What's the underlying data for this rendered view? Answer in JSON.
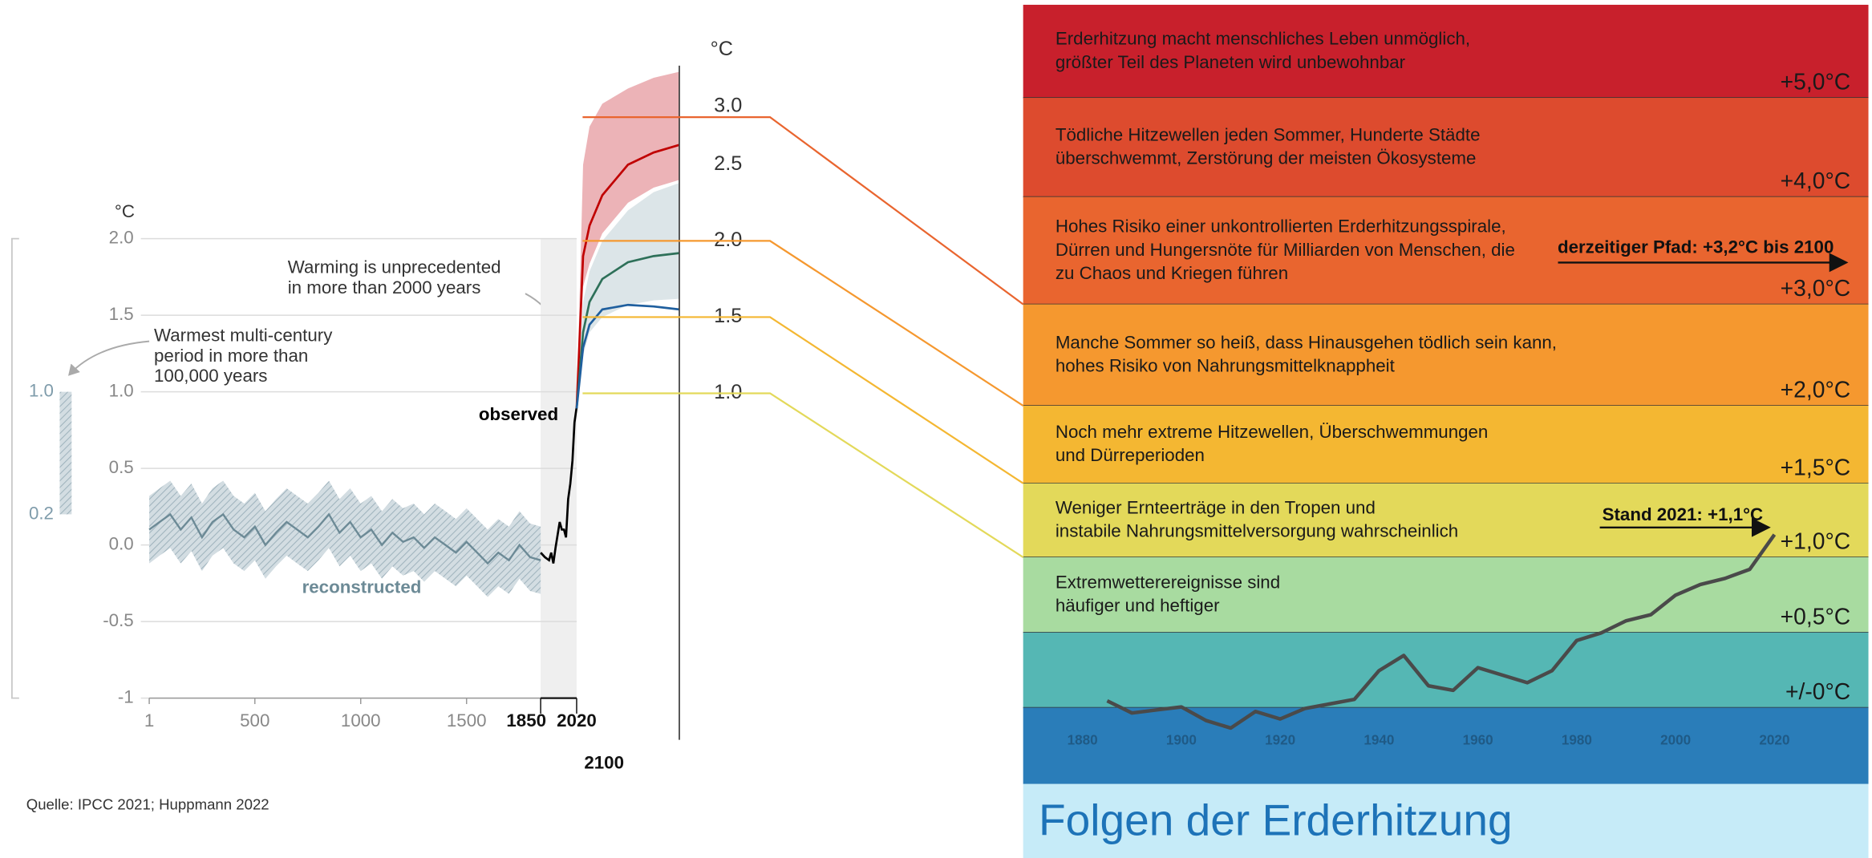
{
  "chart_data": [
    {
      "type": "line",
      "ylabel": "°C",
      "y2label": "°C",
      "xlim": [
        1,
        2100
      ],
      "xticks": [
        1,
        500,
        1000,
        1500,
        1850,
        2020,
        2100
      ],
      "ylim": [
        -1,
        2
      ],
      "yticks": [
        -1,
        -0.5,
        {
          "value": 0,
          "label": "0.0"
        },
        0.5,
        {
          "value": 1,
          "label": "1.0"
        },
        1.5,
        {
          "value": 2,
          "label": "2.0"
        }
      ],
      "y2lim": [
        -1,
        3.15
      ],
      "y2ticks": [
        {
          "value": 3,
          "label": "3.0"
        },
        2.5,
        {
          "value": 2,
          "label": "2.0"
        },
        1.5,
        {
          "value": 1,
          "label": "1.0"
        }
      ],
      "grid": true,
      "range_ticks": [
        {
          "value": 1,
          "label": "1.0"
        },
        {
          "value": 0.2,
          "label": "0.2"
        }
      ],
      "annotations": [
        [
          "Warming is unprecedented",
          "in more than 2000 years"
        ],
        [
          "Warmest multi-century",
          "period in more than",
          "100,000 years"
        ]
      ],
      "series": [
        {
          "name": "reconstructed",
          "color": "#6c8a96",
          "band_color": "#b9c9d1",
          "x": [
            1,
            50,
            100,
            150,
            200,
            250,
            300,
            350,
            400,
            450,
            500,
            550,
            600,
            650,
            700,
            750,
            800,
            850,
            900,
            950,
            1000,
            1050,
            1100,
            1150,
            1200,
            1250,
            1300,
            1350,
            1400,
            1450,
            1500,
            1550,
            1600,
            1650,
            1700,
            1750,
            1800,
            1850
          ],
          "values": [
            0.1,
            0.15,
            0.2,
            0.1,
            0.18,
            0.05,
            0.15,
            0.2,
            0.1,
            0.05,
            0.12,
            0.0,
            0.08,
            0.15,
            0.1,
            0.05,
            0.12,
            0.2,
            0.08,
            0.15,
            0.05,
            0.1,
            0.0,
            0.08,
            0.02,
            0.05,
            -0.02,
            0.05,
            0.0,
            -0.05,
            0.02,
            -0.05,
            -0.12,
            -0.05,
            -0.1,
            0.0,
            -0.08,
            -0.1
          ],
          "upper": [
            0.32,
            0.37,
            0.42,
            0.32,
            0.4,
            0.27,
            0.37,
            0.42,
            0.32,
            0.27,
            0.34,
            0.22,
            0.3,
            0.37,
            0.32,
            0.27,
            0.34,
            0.42,
            0.3,
            0.37,
            0.27,
            0.32,
            0.22,
            0.3,
            0.24,
            0.27,
            0.2,
            0.27,
            0.22,
            0.17,
            0.24,
            0.17,
            0.1,
            0.17,
            0.12,
            0.22,
            0.14,
            0.12
          ],
          "lower": [
            -0.12,
            -0.07,
            -0.02,
            -0.12,
            -0.04,
            -0.17,
            -0.07,
            -0.02,
            -0.12,
            -0.17,
            -0.1,
            -0.22,
            -0.14,
            -0.07,
            -0.12,
            -0.17,
            -0.1,
            -0.02,
            -0.14,
            -0.07,
            -0.17,
            -0.12,
            -0.22,
            -0.14,
            -0.2,
            -0.17,
            -0.24,
            -0.17,
            -0.22,
            -0.27,
            -0.2,
            -0.27,
            -0.34,
            -0.27,
            -0.32,
            -0.22,
            -0.3,
            -0.32
          ]
        },
        {
          "name": "observed",
          "color": "#000000",
          "x": [
            1850,
            1870,
            1890,
            1900,
            1910,
            1920,
            1940,
            1950,
            1960,
            1970,
            1980,
            1990,
            2000,
            2010,
            2020
          ],
          "values": [
            -0.05,
            -0.08,
            -0.1,
            -0.05,
            -0.12,
            -0.02,
            0.15,
            0.1,
            0.1,
            0.05,
            0.3,
            0.4,
            0.55,
            0.8,
            0.9
          ]
        },
        {
          "color": "#c00000",
          "band_color": "#e9a6aa",
          "axis": "y2",
          "x": [
            2020,
            2025,
            2030,
            2040,
            2060,
            2080,
            2100
          ],
          "values": [
            0.9,
            1.9,
            2.1,
            2.3,
            2.5,
            2.58,
            2.63
          ],
          "upper": [
            0.9,
            2.5,
            2.75,
            2.9,
            3.0,
            3.07,
            3.11
          ],
          "lower": [
            0.9,
            1.7,
            1.85,
            2.05,
            2.25,
            2.35,
            2.4
          ]
        },
        {
          "color": "#2e7059",
          "band_color": "#dce5e8",
          "axis": "y2",
          "x": [
            2020,
            2025,
            2030,
            2040,
            2060,
            2080,
            2100
          ],
          "values": [
            0.9,
            1.4,
            1.6,
            1.75,
            1.86,
            1.9,
            1.92
          ],
          "upper": [
            0.9,
            1.6,
            1.8,
            2.0,
            2.2,
            2.32,
            2.38
          ],
          "lower": [
            0.9,
            1.25,
            1.4,
            1.5,
            1.58,
            1.61,
            1.62
          ]
        },
        {
          "color": "#1f5f9e",
          "axis": "y2",
          "x": [
            2020,
            2025,
            2030,
            2040,
            2060,
            2080,
            2100
          ],
          "values": [
            0.9,
            1.3,
            1.45,
            1.55,
            1.58,
            1.57,
            1.55
          ]
        }
      ]
    },
    {
      "type": "line",
      "title": "Folgen der Erderhitzung",
      "xlim": [
        1868,
        2039
      ],
      "ylim": [
        -0.5,
        1.0
      ],
      "xticks": [
        1880,
        1900,
        1920,
        1940,
        1960,
        1980,
        2000,
        2020
      ],
      "color": "#4a4a4a",
      "axis_band_color": "#2a7db9",
      "tick_color": "#1f5a86",
      "title_band_color": "#c6ebf8",
      "title_color": "#1d73b8",
      "x": [
        1885,
        1890,
        1895,
        1900,
        1905,
        1910,
        1915,
        1920,
        1925,
        1930,
        1935,
        1940,
        1945,
        1950,
        1955,
        1960,
        1965,
        1970,
        1975,
        1980,
        1985,
        1990,
        1995,
        2000,
        2005,
        2010,
        2015,
        2020
      ],
      "values": [
        0.05,
        -0.03,
        -0.01,
        0.01,
        -0.08,
        -0.13,
        -0.02,
        -0.07,
        0.0,
        0.03,
        0.06,
        0.25,
        0.35,
        0.15,
        0.12,
        0.27,
        0.22,
        0.17,
        0.25,
        0.45,
        0.5,
        0.58,
        0.62,
        0.75,
        0.82,
        0.86,
        0.92,
        1.15
      ],
      "annotations": [
        "derzeitiger Pfad: +3,2°C bis 2100",
        "Stand 2021: +1,1°C"
      ],
      "bands": [
        {
          "color": "#c8202c",
          "label": "+5,0°C",
          "lines": [
            "Erderhitzung macht menschliches Leben unmöglich,",
            "größter Teil des Planeten wird unbewohnbar"
          ]
        },
        {
          "color": "#dd4b2e",
          "label": "+4,0°C",
          "lines": [
            "Tödliche Hitzewellen jeden Sommer, Hunderte Städte",
            "überschwemmt, Zerstörung der meisten Ökosysteme"
          ]
        },
        {
          "color": "#e9652f",
          "label": "+3,0°C",
          "lines": [
            "Hohes Risiko einer unkontrollierten Erderhitzungsspirale,",
            "Dürren und Hungersnöte für Milliarden von Menschen, die",
            "zu Chaos und Kriegen führen"
          ]
        },
        {
          "color": "#f5982f",
          "label": "+2,0°C",
          "lines": [
            "Manche Sommer so heiß, dass Hinausgehen tödlich sein kann,",
            "hohes Risiko von Nahrungsmittelknappheit"
          ]
        },
        {
          "color": "#f4b732",
          "label": "+1,5°C",
          "lines": [
            "Noch mehr extreme Hitzewellen, Überschwemmungen",
            "und Dürreperioden"
          ]
        },
        {
          "color": "#e3d95a",
          "label": "+1,0°C",
          "lines": [
            "Weniger Ernteerträge in den Tropen und",
            "instabile Nahrungsmittelversorgung wahrscheinlich"
          ]
        },
        {
          "color": "#a8dba0",
          "label": "+0,5°C",
          "lines": [
            "Extremwetterereignisse sind",
            "häufiger und heftiger"
          ]
        },
        {
          "color": "#55b7b4",
          "label": "+/-0°C",
          "lines": []
        }
      ]
    }
  ],
  "source": "Quelle: IPCC 2021; Huppmann 2022"
}
